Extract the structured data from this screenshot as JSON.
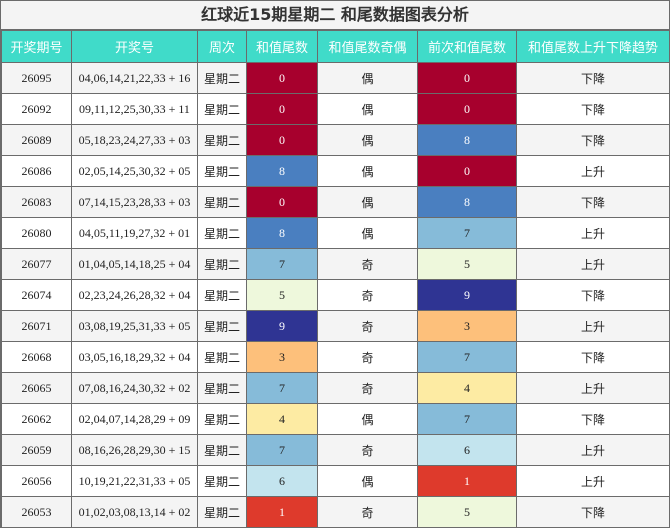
{
  "title": "红球近15期星期二 和尾数据图表分析",
  "headers": [
    "开奖期号",
    "开奖号",
    "周次",
    "和值尾数",
    "和值尾数奇偶",
    "前次和值尾数",
    "和值尾数上升下降趋势"
  ],
  "rows": [
    {
      "period": "26095",
      "numbers": "04,06,14,21,22,33 + 16",
      "weekday": "星期二",
      "tail": "0",
      "parity": "偶",
      "prev_tail": "0",
      "trend": "下降"
    },
    {
      "period": "26092",
      "numbers": "09,11,12,25,30,33 + 11",
      "weekday": "星期二",
      "tail": "0",
      "parity": "偶",
      "prev_tail": "0",
      "trend": "下降"
    },
    {
      "period": "26089",
      "numbers": "05,18,23,24,27,33 + 03",
      "weekday": "星期二",
      "tail": "0",
      "parity": "偶",
      "prev_tail": "8",
      "trend": "下降"
    },
    {
      "period": "26086",
      "numbers": "02,05,14,25,30,32 + 05",
      "weekday": "星期二",
      "tail": "8",
      "parity": "偶",
      "prev_tail": "0",
      "trend": "上升"
    },
    {
      "period": "26083",
      "numbers": "07,14,15,23,28,33 + 03",
      "weekday": "星期二",
      "tail": "0",
      "parity": "偶",
      "prev_tail": "8",
      "trend": "下降"
    },
    {
      "period": "26080",
      "numbers": "04,05,11,19,27,32 + 01",
      "weekday": "星期二",
      "tail": "8",
      "parity": "偶",
      "prev_tail": "7",
      "trend": "上升"
    },
    {
      "period": "26077",
      "numbers": "01,04,05,14,18,25 + 04",
      "weekday": "星期二",
      "tail": "7",
      "parity": "奇",
      "prev_tail": "5",
      "trend": "上升"
    },
    {
      "period": "26074",
      "numbers": "02,23,24,26,28,32 + 04",
      "weekday": "星期二",
      "tail": "5",
      "parity": "奇",
      "prev_tail": "9",
      "trend": "下降"
    },
    {
      "period": "26071",
      "numbers": "03,08,19,25,31,33 + 05",
      "weekday": "星期二",
      "tail": "9",
      "parity": "奇",
      "prev_tail": "3",
      "trend": "上升"
    },
    {
      "period": "26068",
      "numbers": "03,05,16,18,29,32 + 04",
      "weekday": "星期二",
      "tail": "3",
      "parity": "奇",
      "prev_tail": "7",
      "trend": "下降"
    },
    {
      "period": "26065",
      "numbers": "07,08,16,24,30,32 + 02",
      "weekday": "星期二",
      "tail": "7",
      "parity": "奇",
      "prev_tail": "4",
      "trend": "上升"
    },
    {
      "period": "26062",
      "numbers": "02,04,07,14,28,29 + 09",
      "weekday": "星期二",
      "tail": "4",
      "parity": "偶",
      "prev_tail": "7",
      "trend": "下降"
    },
    {
      "period": "26059",
      "numbers": "08,16,26,28,29,30 + 15",
      "weekday": "星期二",
      "tail": "7",
      "parity": "奇",
      "prev_tail": "6",
      "trend": "上升"
    },
    {
      "period": "26056",
      "numbers": "10,19,21,22,31,33 + 05",
      "weekday": "星期二",
      "tail": "6",
      "parity": "偶",
      "prev_tail": "1",
      "trend": "上升"
    },
    {
      "period": "26053",
      "numbers": "01,02,03,08,13,14 + 02",
      "weekday": "星期二",
      "tail": "1",
      "parity": "奇",
      "prev_tail": "5",
      "trend": "下降"
    }
  ],
  "colors": {
    "header_bg": "#40dbc9",
    "tail_0": "#a7002d",
    "tail_1": "#de3a2c",
    "tail_3": "#fdc07b",
    "tail_4": "#fdeba3",
    "tail_5": "#eef8dc",
    "tail_6": "#c3e4ee",
    "tail_7": "#86bbd9",
    "tail_8": "#4a7fc0",
    "tail_9": "#2f3493"
  }
}
